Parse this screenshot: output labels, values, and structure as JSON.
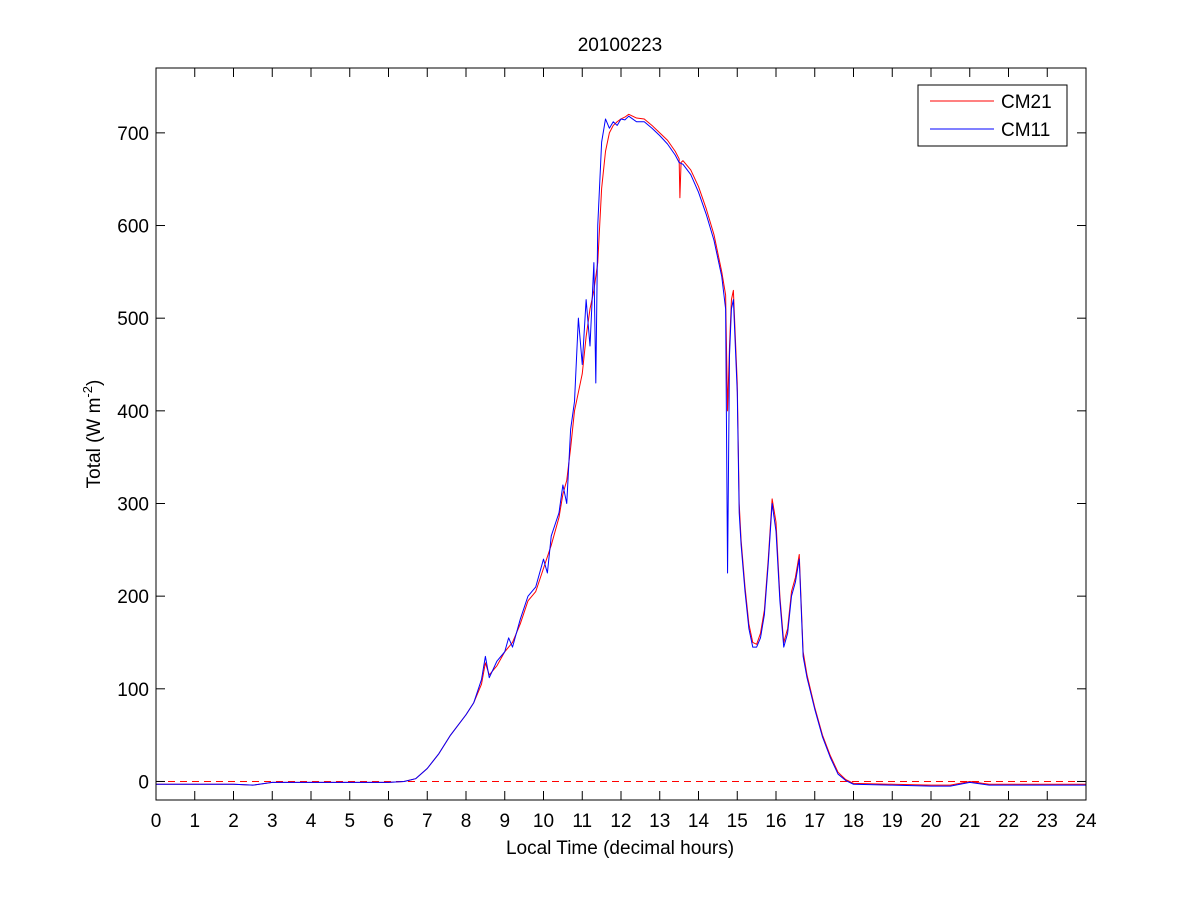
{
  "chart_data": {
    "type": "line",
    "title": "20100223",
    "xlabel": "Local Time (decimal hours)",
    "ylabel": {
      "prefix": "Total (W m",
      "superscript": "-2",
      "suffix": ")"
    },
    "xlim": [
      0,
      24
    ],
    "ylim": [
      -20,
      770
    ],
    "xticks": [
      0,
      1,
      2,
      3,
      4,
      5,
      6,
      7,
      8,
      9,
      10,
      11,
      12,
      13,
      14,
      15,
      16,
      17,
      18,
      19,
      20,
      21,
      22,
      23,
      24
    ],
    "yticks": [
      0,
      100,
      200,
      300,
      400,
      500,
      600,
      700
    ],
    "grid": false,
    "legend_position": "top-right",
    "reference_line": {
      "y": 0,
      "style": "dashed",
      "color": "#ff0000"
    },
    "series": [
      {
        "name": "CM21",
        "color": "#ff0000",
        "points": [
          [
            0,
            -3
          ],
          [
            1,
            -3
          ],
          [
            2,
            -3
          ],
          [
            2.5,
            -4
          ],
          [
            3,
            -1
          ],
          [
            4,
            -1
          ],
          [
            5,
            -1
          ],
          [
            6,
            -1
          ],
          [
            6.4,
            0
          ],
          [
            6.7,
            3
          ],
          [
            7,
            14
          ],
          [
            7.3,
            30
          ],
          [
            7.6,
            50
          ],
          [
            8,
            72
          ],
          [
            8.2,
            85
          ],
          [
            8.4,
            105
          ],
          [
            8.5,
            128
          ],
          [
            8.6,
            115
          ],
          [
            8.8,
            125
          ],
          [
            9,
            140
          ],
          [
            9.2,
            150
          ],
          [
            9.4,
            170
          ],
          [
            9.6,
            195
          ],
          [
            9.8,
            205
          ],
          [
            10,
            230
          ],
          [
            10.2,
            255
          ],
          [
            10.4,
            285
          ],
          [
            10.5,
            310
          ],
          [
            10.6,
            325
          ],
          [
            10.7,
            360
          ],
          [
            10.8,
            400
          ],
          [
            10.9,
            420
          ],
          [
            11,
            440
          ],
          [
            11.1,
            480
          ],
          [
            11.2,
            510
          ],
          [
            11.3,
            530
          ],
          [
            11.4,
            560
          ],
          [
            11.5,
            640
          ],
          [
            11.6,
            680
          ],
          [
            11.7,
            700
          ],
          [
            11.8,
            708
          ],
          [
            11.9,
            712
          ],
          [
            12,
            715
          ],
          [
            12.1,
            717
          ],
          [
            12.2,
            720
          ],
          [
            12.4,
            716
          ],
          [
            12.6,
            715
          ],
          [
            12.8,
            708
          ],
          [
            13,
            700
          ],
          [
            13.2,
            692
          ],
          [
            13.4,
            680
          ],
          [
            13.5,
            672
          ],
          [
            13.52,
            630
          ],
          [
            13.55,
            668
          ],
          [
            13.6,
            670
          ],
          [
            13.8,
            660
          ],
          [
            14,
            642
          ],
          [
            14.2,
            618
          ],
          [
            14.4,
            590
          ],
          [
            14.6,
            550
          ],
          [
            14.7,
            525
          ],
          [
            14.75,
            400
          ],
          [
            14.8,
            470
          ],
          [
            14.85,
            520
          ],
          [
            14.9,
            530
          ],
          [
            15,
            430
          ],
          [
            15.05,
            300
          ],
          [
            15.1,
            260
          ],
          [
            15.2,
            210
          ],
          [
            15.3,
            170
          ],
          [
            15.4,
            150
          ],
          [
            15.5,
            148
          ],
          [
            15.6,
            160
          ],
          [
            15.7,
            185
          ],
          [
            15.8,
            240
          ],
          [
            15.9,
            305
          ],
          [
            16,
            280
          ],
          [
            16.1,
            200
          ],
          [
            16.2,
            150
          ],
          [
            16.3,
            165
          ],
          [
            16.4,
            205
          ],
          [
            16.5,
            220
          ],
          [
            16.6,
            245
          ],
          [
            16.7,
            140
          ],
          [
            16.8,
            115
          ],
          [
            17,
            80
          ],
          [
            17.2,
            50
          ],
          [
            17.4,
            28
          ],
          [
            17.6,
            10
          ],
          [
            17.8,
            2
          ],
          [
            18,
            -2
          ],
          [
            19,
            -3
          ],
          [
            20,
            -4
          ],
          [
            20.5,
            -4
          ],
          [
            21,
            0
          ],
          [
            21.5,
            -3
          ],
          [
            22,
            -3
          ],
          [
            23,
            -3
          ],
          [
            24,
            -3
          ]
        ]
      },
      {
        "name": "CM11",
        "color": "#0000ff",
        "points": [
          [
            0,
            -3
          ],
          [
            1,
            -3
          ],
          [
            2,
            -3
          ],
          [
            2.5,
            -4
          ],
          [
            3,
            -1
          ],
          [
            4,
            -1
          ],
          [
            5,
            -1
          ],
          [
            6,
            -1
          ],
          [
            6.4,
            0
          ],
          [
            6.7,
            3
          ],
          [
            7,
            14
          ],
          [
            7.3,
            30
          ],
          [
            7.6,
            50
          ],
          [
            8,
            72
          ],
          [
            8.2,
            85
          ],
          [
            8.4,
            110
          ],
          [
            8.5,
            135
          ],
          [
            8.6,
            112
          ],
          [
            8.8,
            130
          ],
          [
            9,
            140
          ],
          [
            9.1,
            155
          ],
          [
            9.2,
            145
          ],
          [
            9.4,
            175
          ],
          [
            9.6,
            200
          ],
          [
            9.8,
            210
          ],
          [
            10,
            240
          ],
          [
            10.1,
            225
          ],
          [
            10.2,
            265
          ],
          [
            10.4,
            290
          ],
          [
            10.5,
            320
          ],
          [
            10.6,
            300
          ],
          [
            10.7,
            380
          ],
          [
            10.8,
            410
          ],
          [
            10.9,
            500
          ],
          [
            11,
            450
          ],
          [
            11.1,
            520
          ],
          [
            11.2,
            470
          ],
          [
            11.3,
            560
          ],
          [
            11.35,
            430
          ],
          [
            11.4,
            600
          ],
          [
            11.5,
            690
          ],
          [
            11.6,
            715
          ],
          [
            11.7,
            705
          ],
          [
            11.8,
            712
          ],
          [
            11.9,
            708
          ],
          [
            12,
            715
          ],
          [
            12.1,
            714
          ],
          [
            12.2,
            718
          ],
          [
            12.4,
            712
          ],
          [
            12.6,
            712
          ],
          [
            12.8,
            705
          ],
          [
            13,
            697
          ],
          [
            13.2,
            688
          ],
          [
            13.4,
            676
          ],
          [
            13.5,
            668
          ],
          [
            13.6,
            666
          ],
          [
            13.8,
            655
          ],
          [
            14,
            636
          ],
          [
            14.2,
            612
          ],
          [
            14.4,
            584
          ],
          [
            14.6,
            545
          ],
          [
            14.7,
            510
          ],
          [
            14.75,
            225
          ],
          [
            14.8,
            460
          ],
          [
            14.85,
            510
          ],
          [
            14.9,
            520
          ],
          [
            15,
            420
          ],
          [
            15.05,
            290
          ],
          [
            15.1,
            255
          ],
          [
            15.2,
            205
          ],
          [
            15.3,
            165
          ],
          [
            15.4,
            145
          ],
          [
            15.5,
            145
          ],
          [
            15.6,
            155
          ],
          [
            15.7,
            180
          ],
          [
            15.8,
            235
          ],
          [
            15.9,
            300
          ],
          [
            16,
            270
          ],
          [
            16.1,
            195
          ],
          [
            16.2,
            145
          ],
          [
            16.3,
            160
          ],
          [
            16.4,
            200
          ],
          [
            16.5,
            215
          ],
          [
            16.6,
            240
          ],
          [
            16.7,
            135
          ],
          [
            16.8,
            112
          ],
          [
            17,
            78
          ],
          [
            17.2,
            48
          ],
          [
            17.4,
            26
          ],
          [
            17.6,
            8
          ],
          [
            17.8,
            1
          ],
          [
            18,
            -3
          ],
          [
            19,
            -4
          ],
          [
            20,
            -5
          ],
          [
            20.5,
            -5
          ],
          [
            21,
            -1
          ],
          [
            21.5,
            -4
          ],
          [
            22,
            -4
          ],
          [
            23,
            -4
          ],
          [
            24,
            -4
          ]
        ]
      }
    ]
  }
}
